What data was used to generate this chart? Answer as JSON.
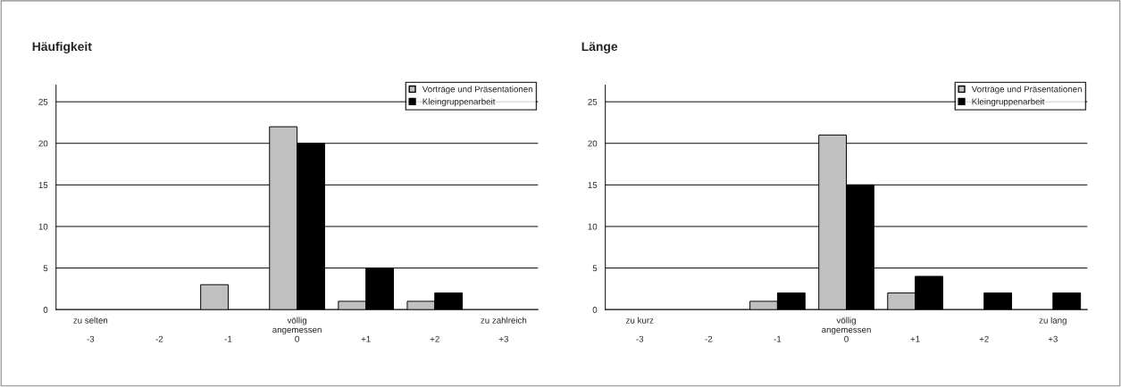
{
  "chart_data": [
    {
      "type": "bar",
      "title": "Häufigkeit",
      "categories": [
        "zu selten\n\n-3",
        "\n\n-2",
        "\n\n-1",
        "völlig\nangemessen\n0",
        "\n\n+1",
        "\n\n+2",
        "zu zahlreich\n\n+3"
      ],
      "series": [
        {
          "name": "Vorträge und Präsentationen",
          "color": "#c0c0c0",
          "values": [
            0,
            0,
            3,
            22,
            1,
            1,
            0
          ]
        },
        {
          "name": "Kleingruppenarbeit",
          "color": "#000000",
          "values": [
            0,
            0,
            0,
            20,
            5,
            2,
            0
          ]
        }
      ],
      "ylim": [
        0,
        27
      ],
      "yticks": [
        0,
        5,
        10,
        15,
        20,
        25
      ],
      "grid": "y",
      "legend": "top right"
    },
    {
      "type": "bar",
      "title": "Länge",
      "categories": [
        "zu kurz\n\n-3",
        "\n\n-2",
        "\n\n-1",
        "völlig\nangemessen\n0",
        "\n\n+1",
        "\n\n+2",
        "zu lang\n\n+3"
      ],
      "series": [
        {
          "name": "Vorträge und Präsentationen",
          "color": "#c0c0c0",
          "values": [
            0,
            0,
            1,
            21,
            2,
            0,
            0
          ]
        },
        {
          "name": "Kleingruppenarbeit",
          "color": "#000000",
          "values": [
            0,
            0,
            2,
            15,
            4,
            2,
            2
          ]
        }
      ],
      "ylim": [
        0,
        27
      ],
      "yticks": [
        0,
        5,
        10,
        15,
        20,
        25
      ],
      "grid": "y",
      "legend": "top right"
    }
  ]
}
